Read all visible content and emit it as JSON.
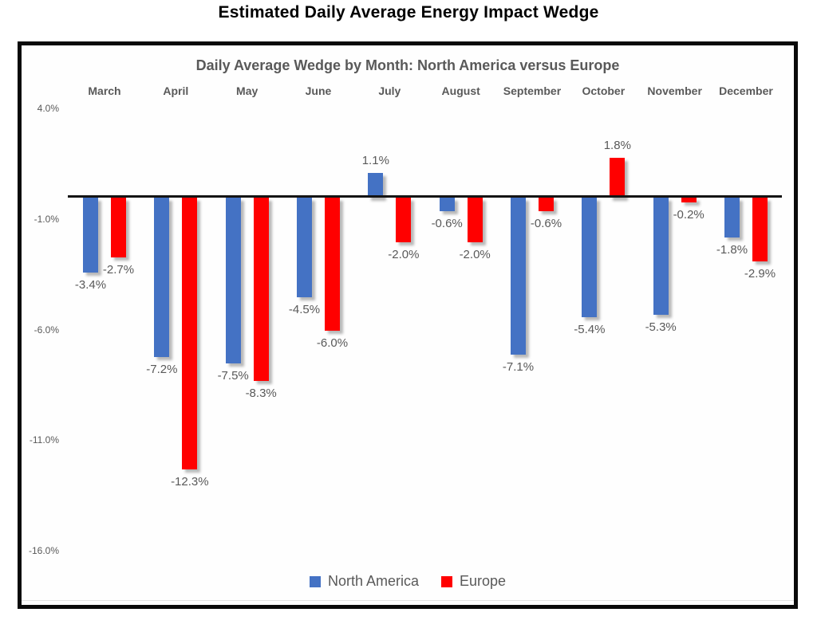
{
  "page": {
    "title": "Estimated Daily Average Energy Impact Wedge"
  },
  "chart_data": {
    "type": "bar",
    "title": "Daily Average Wedge by Month: North America versus Europe",
    "categories": [
      "March",
      "April",
      "May",
      "June",
      "July",
      "August",
      "September",
      "October",
      "November",
      "December"
    ],
    "series": [
      {
        "name": "North America",
        "color": "#4472C4",
        "values": [
          -3.4,
          -7.2,
          -7.5,
          -4.5,
          1.1,
          -0.6,
          -7.1,
          -5.4,
          -5.3,
          -1.8
        ],
        "labels": [
          "-3.4%",
          "-7.2%",
          "-7.5%",
          "-4.5%",
          "1.1%",
          "-0.6%",
          "-7.1%",
          "-5.4%",
          "-5.3%",
          "-1.8%"
        ]
      },
      {
        "name": "Europe",
        "color": "#FF0000",
        "values": [
          -2.7,
          -12.3,
          -8.3,
          -6.0,
          -2.0,
          -2.0,
          -0.6,
          1.8,
          -0.2,
          -2.9
        ],
        "labels": [
          "-2.7%",
          "-12.3%",
          "-8.3%",
          "-6.0%",
          "-2.0%",
          "-2.0%",
          "-0.6%",
          "1.8%",
          "-0.2%",
          "-2.9%"
        ]
      }
    ],
    "y_axis": {
      "unit": "percent",
      "tick_labels": [
        "4.0%",
        "-1.0%",
        "-6.0%",
        "-11.0%",
        "-16.0%"
      ],
      "tick_values": [
        4,
        -1,
        -6,
        -11,
        -16
      ],
      "range": [
        -16,
        4
      ]
    },
    "value_label_position": "outside-end",
    "legend_position": "bottom",
    "grid": false,
    "style": {
      "text_color": "#595959",
      "axis_color": "#141414",
      "frame_border_color": "#0a0a0a"
    }
  }
}
